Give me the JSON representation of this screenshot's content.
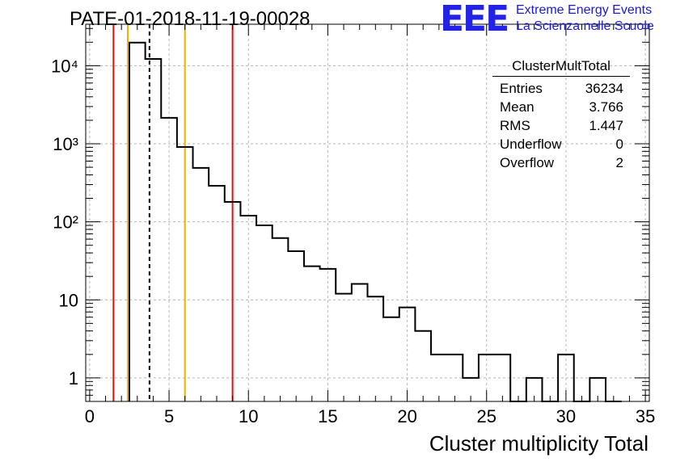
{
  "title": "PATE-01-2018-11-19-00028",
  "logo": {
    "mark": "EEE",
    "line1": "Extreme Energy Events",
    "line2": "La Scienza nelle Scuole",
    "color": "#2323e8"
  },
  "stats_box": {
    "title": "ClusterMultTotal",
    "rows": [
      {
        "label": "Entries",
        "value": "36234"
      },
      {
        "label": "Mean",
        "value": "3.766"
      },
      {
        "label": "RMS",
        "value": "1.447"
      },
      {
        "label": "Underflow",
        "value": "0"
      },
      {
        "label": "Overflow",
        "value": "2"
      }
    ]
  },
  "chart_data": {
    "type": "bar",
    "histogram": true,
    "xlabel": "Cluster multiplicity Total",
    "ylabel": "",
    "xlim": [
      -0.25,
      35.25
    ],
    "ylim": [
      0.5,
      34000
    ],
    "y_scale": "log",
    "grid": true,
    "bin_width": 1,
    "x_ticks": [
      0,
      5,
      10,
      15,
      20,
      25,
      30,
      35
    ],
    "x_tick_labels": [
      "0",
      "5",
      "10",
      "15",
      "20",
      "25",
      "30",
      "35"
    ],
    "y_ticks": [
      1,
      10,
      100,
      1000,
      10000
    ],
    "y_tick_labels": [
      "1",
      "10",
      "10²",
      "10³",
      "10⁴"
    ],
    "bins": [
      {
        "x_low": 2.5,
        "count": 19800
      },
      {
        "x_low": 3.5,
        "count": 12200
      },
      {
        "x_low": 4.5,
        "count": 2150
      },
      {
        "x_low": 5.5,
        "count": 910
      },
      {
        "x_low": 6.5,
        "count": 490
      },
      {
        "x_low": 7.5,
        "count": 290
      },
      {
        "x_low": 8.5,
        "count": 180
      },
      {
        "x_low": 9.5,
        "count": 120
      },
      {
        "x_low": 10.5,
        "count": 90
      },
      {
        "x_low": 11.5,
        "count": 62
      },
      {
        "x_low": 12.5,
        "count": 42
      },
      {
        "x_low": 13.5,
        "count": 27
      },
      {
        "x_low": 14.5,
        "count": 25
      },
      {
        "x_low": 15.5,
        "count": 12
      },
      {
        "x_low": 16.5,
        "count": 16
      },
      {
        "x_low": 17.5,
        "count": 11
      },
      {
        "x_low": 18.5,
        "count": 6
      },
      {
        "x_low": 19.5,
        "count": 8
      },
      {
        "x_low": 20.5,
        "count": 4
      },
      {
        "x_low": 21.5,
        "count": 2
      },
      {
        "x_low": 22.5,
        "count": 2
      },
      {
        "x_low": 23.5,
        "count": 1
      },
      {
        "x_low": 24.5,
        "count": 2
      },
      {
        "x_low": 25.5,
        "count": 2
      },
      {
        "x_low": 26.5,
        "count": 0
      },
      {
        "x_low": 27.5,
        "count": 1
      },
      {
        "x_low": 28.5,
        "count": 0
      },
      {
        "x_low": 29.5,
        "count": 2
      },
      {
        "x_low": 30.5,
        "count": 0
      },
      {
        "x_low": 31.5,
        "count": 1
      },
      {
        "x_low": 32.5,
        "count": 0
      }
    ],
    "markers": [
      {
        "x": 1.5,
        "color": "#e01010",
        "style": "solid"
      },
      {
        "x": 2.4,
        "color": "#f0b000",
        "style": "solid"
      },
      {
        "x": 3.766,
        "color": "#000000",
        "style": "dashed"
      },
      {
        "x": 6.0,
        "color": "#f0b000",
        "style": "solid"
      },
      {
        "x": 9.0,
        "color": "#e01010",
        "style": "solid"
      }
    ],
    "colors": {
      "histogram": "#000000",
      "grid": "#b4b4b4"
    }
  }
}
